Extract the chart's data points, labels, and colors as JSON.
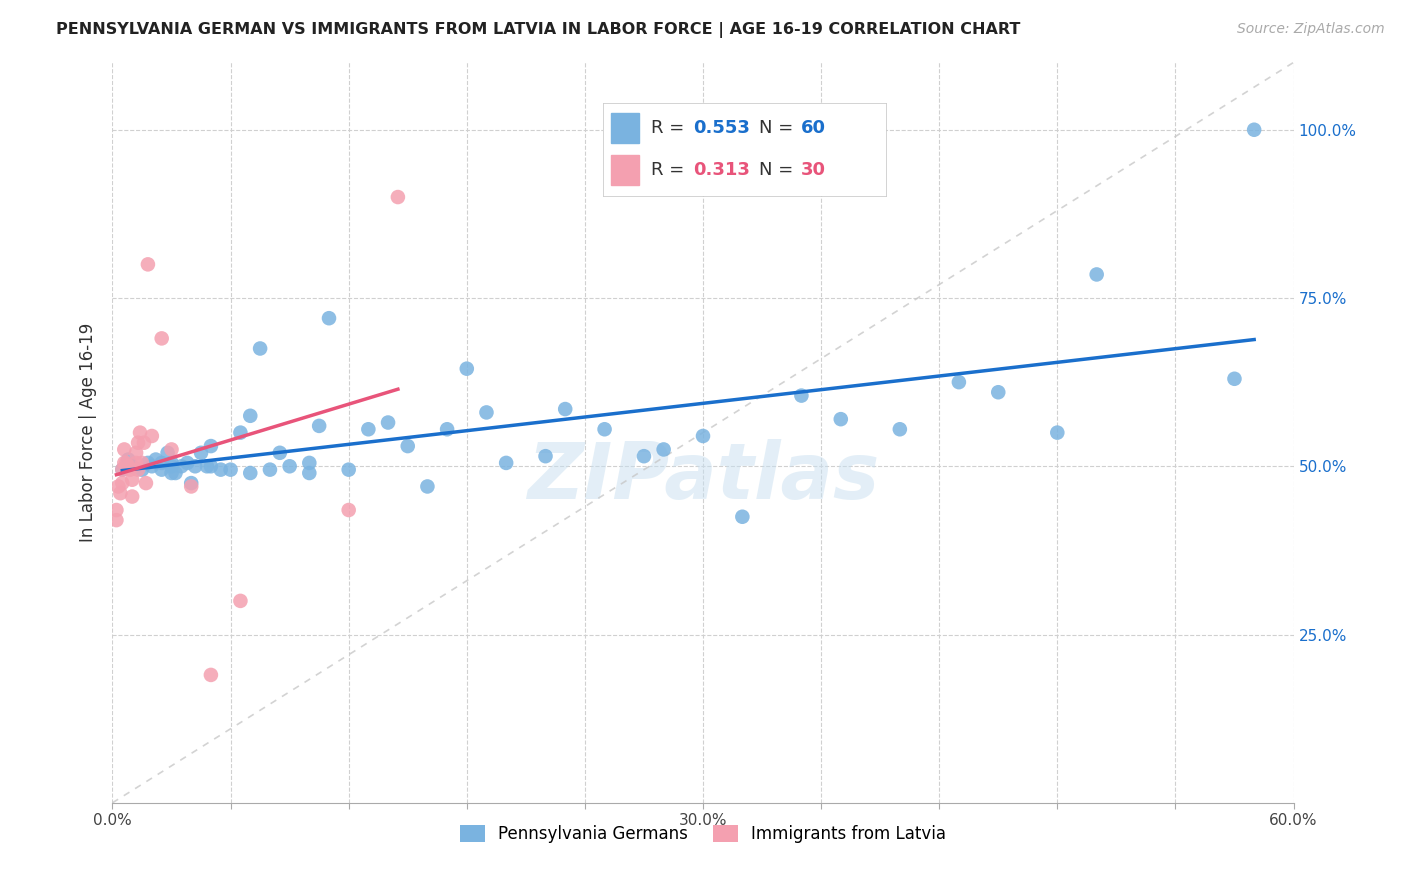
{
  "title": "PENNSYLVANIA GERMAN VS IMMIGRANTS FROM LATVIA IN LABOR FORCE | AGE 16-19 CORRELATION CHART",
  "source": "Source: ZipAtlas.com",
  "ylabel": "In Labor Force | Age 16-19",
  "xlim": [
    0.0,
    0.6
  ],
  "ylim": [
    0.0,
    1.1
  ],
  "ytick_values": [
    0.25,
    0.5,
    0.75,
    1.0
  ],
  "ytick_labels": [
    "25.0%",
    "50.0%",
    "75.0%",
    "100.0%"
  ],
  "xtick_values": [
    0.0,
    0.06,
    0.12,
    0.18,
    0.24,
    0.3,
    0.36,
    0.42,
    0.48,
    0.54,
    0.6
  ],
  "xtick_labels": [
    "0.0%",
    "",
    "",
    "",
    "",
    "30.0%",
    "",
    "",
    "",
    "",
    "60.0%"
  ],
  "blue_R": 0.553,
  "blue_N": 60,
  "pink_R": 0.313,
  "pink_N": 30,
  "blue_color": "#7ab3e0",
  "pink_color": "#f4a0b0",
  "blue_line_color": "#1a6fcc",
  "pink_line_color": "#e8547a",
  "diag_line_color": "#c8c8c8",
  "watermark": "ZIPatlas",
  "blue_points_x": [
    0.005,
    0.008,
    0.01,
    0.015,
    0.018,
    0.02,
    0.022,
    0.025,
    0.025,
    0.028,
    0.03,
    0.03,
    0.03,
    0.032,
    0.035,
    0.038,
    0.04,
    0.042,
    0.045,
    0.048,
    0.05,
    0.05,
    0.055,
    0.06,
    0.065,
    0.07,
    0.07,
    0.075,
    0.08,
    0.085,
    0.09,
    0.1,
    0.1,
    0.105,
    0.11,
    0.12,
    0.13,
    0.14,
    0.15,
    0.16,
    0.17,
    0.18,
    0.19,
    0.2,
    0.22,
    0.23,
    0.25,
    0.27,
    0.28,
    0.3,
    0.32,
    0.35,
    0.37,
    0.4,
    0.43,
    0.45,
    0.48,
    0.5,
    0.57,
    0.58
  ],
  "blue_points_y": [
    0.495,
    0.51,
    0.5,
    0.495,
    0.505,
    0.5,
    0.51,
    0.495,
    0.505,
    0.52,
    0.49,
    0.505,
    0.5,
    0.49,
    0.5,
    0.505,
    0.475,
    0.5,
    0.52,
    0.5,
    0.5,
    0.53,
    0.495,
    0.495,
    0.55,
    0.49,
    0.575,
    0.675,
    0.495,
    0.52,
    0.5,
    0.49,
    0.505,
    0.56,
    0.72,
    0.495,
    0.555,
    0.565,
    0.53,
    0.47,
    0.555,
    0.645,
    0.58,
    0.505,
    0.515,
    0.585,
    0.555,
    0.515,
    0.525,
    0.545,
    0.425,
    0.605,
    0.57,
    0.555,
    0.625,
    0.61,
    0.55,
    0.785,
    0.63,
    1.0
  ],
  "pink_points_x": [
    0.002,
    0.002,
    0.003,
    0.004,
    0.005,
    0.005,
    0.006,
    0.006,
    0.007,
    0.008,
    0.009,
    0.01,
    0.01,
    0.012,
    0.012,
    0.013,
    0.013,
    0.014,
    0.015,
    0.016,
    0.017,
    0.018,
    0.02,
    0.025,
    0.03,
    0.04,
    0.05,
    0.065,
    0.12,
    0.145
  ],
  "pink_points_y": [
    0.42,
    0.435,
    0.47,
    0.46,
    0.495,
    0.475,
    0.505,
    0.525,
    0.505,
    0.5,
    0.495,
    0.455,
    0.48,
    0.505,
    0.52,
    0.535,
    0.495,
    0.55,
    0.505,
    0.535,
    0.475,
    0.8,
    0.545,
    0.69,
    0.525,
    0.47,
    0.19,
    0.3,
    0.435,
    0.9
  ]
}
